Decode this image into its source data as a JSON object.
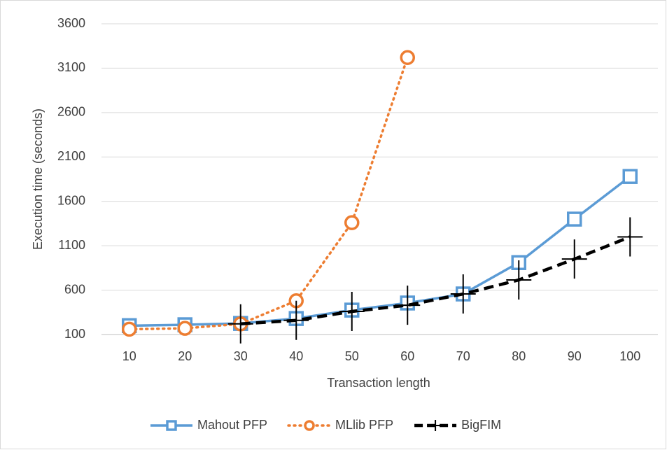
{
  "chart_data": {
    "type": "line",
    "x_label": "Transaction length",
    "y_label": "Execution time (seconds)",
    "categories": [
      "10",
      "20",
      "30",
      "40",
      "50",
      "60",
      "70",
      "80",
      "90",
      "100"
    ],
    "ylim": [
      100,
      3600
    ],
    "yticks": [
      100,
      600,
      1100,
      1600,
      2100,
      2600,
      3100,
      3600
    ],
    "grid": true,
    "legend": "bottom",
    "series": [
      {
        "name": "Mahout PFP",
        "color": "#5b9bd5",
        "line_style": "solid",
        "marker": "square",
        "values": [
          200,
          210,
          225,
          280,
          375,
          455,
          557,
          910,
          1400,
          1880
        ]
      },
      {
        "name": "MLlib PFP",
        "color": "#ed7d31",
        "line_style": "dotted",
        "marker": "circle",
        "values": [
          160,
          170,
          220,
          480,
          1360,
          3220,
          null,
          null,
          null,
          null
        ]
      },
      {
        "name": "BigFIM",
        "color": "#000000",
        "line_style": "dashed",
        "marker": "plus",
        "values": [
          null,
          null,
          220,
          260,
          360,
          430,
          557,
          715,
          950,
          1200
        ]
      }
    ]
  }
}
